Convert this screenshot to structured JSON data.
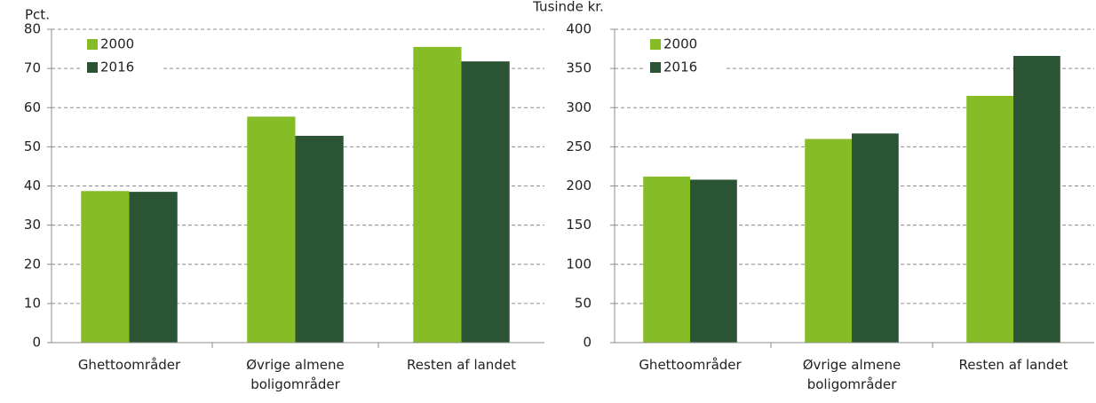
{
  "chart_data": [
    {
      "type": "bar",
      "y_label": "Pct.",
      "categories": [
        "Ghettoområder",
        "Øvrige almene boligområder",
        "Resten af landet"
      ],
      "series": [
        {
          "name": "2000",
          "color": "#86bc25",
          "values": [
            38.7,
            57.7,
            75.5
          ]
        },
        {
          "name": "2016",
          "color": "#2a5433",
          "values": [
            38.5,
            52.8,
            71.8
          ]
        }
      ],
      "ylim": [
        0,
        80
      ],
      "yticks": [
        0,
        10,
        20,
        30,
        40,
        50,
        60,
        70,
        80
      ],
      "grid": true,
      "legend": "upper left"
    },
    {
      "type": "bar",
      "y_label": "Tusinde kr.",
      "categories": [
        "Ghettoområder",
        "Øvrige almene boligområder",
        "Resten af landet"
      ],
      "series": [
        {
          "name": "2000",
          "color": "#86bc25",
          "values": [
            212,
            260,
            315
          ]
        },
        {
          "name": "2016",
          "color": "#2a5433",
          "values": [
            208,
            267,
            366
          ]
        }
      ],
      "ylim": [
        0,
        400
      ],
      "yticks": [
        0,
        50,
        100,
        150,
        200,
        250,
        300,
        350,
        400
      ],
      "grid": true,
      "legend": "upper left"
    }
  ]
}
